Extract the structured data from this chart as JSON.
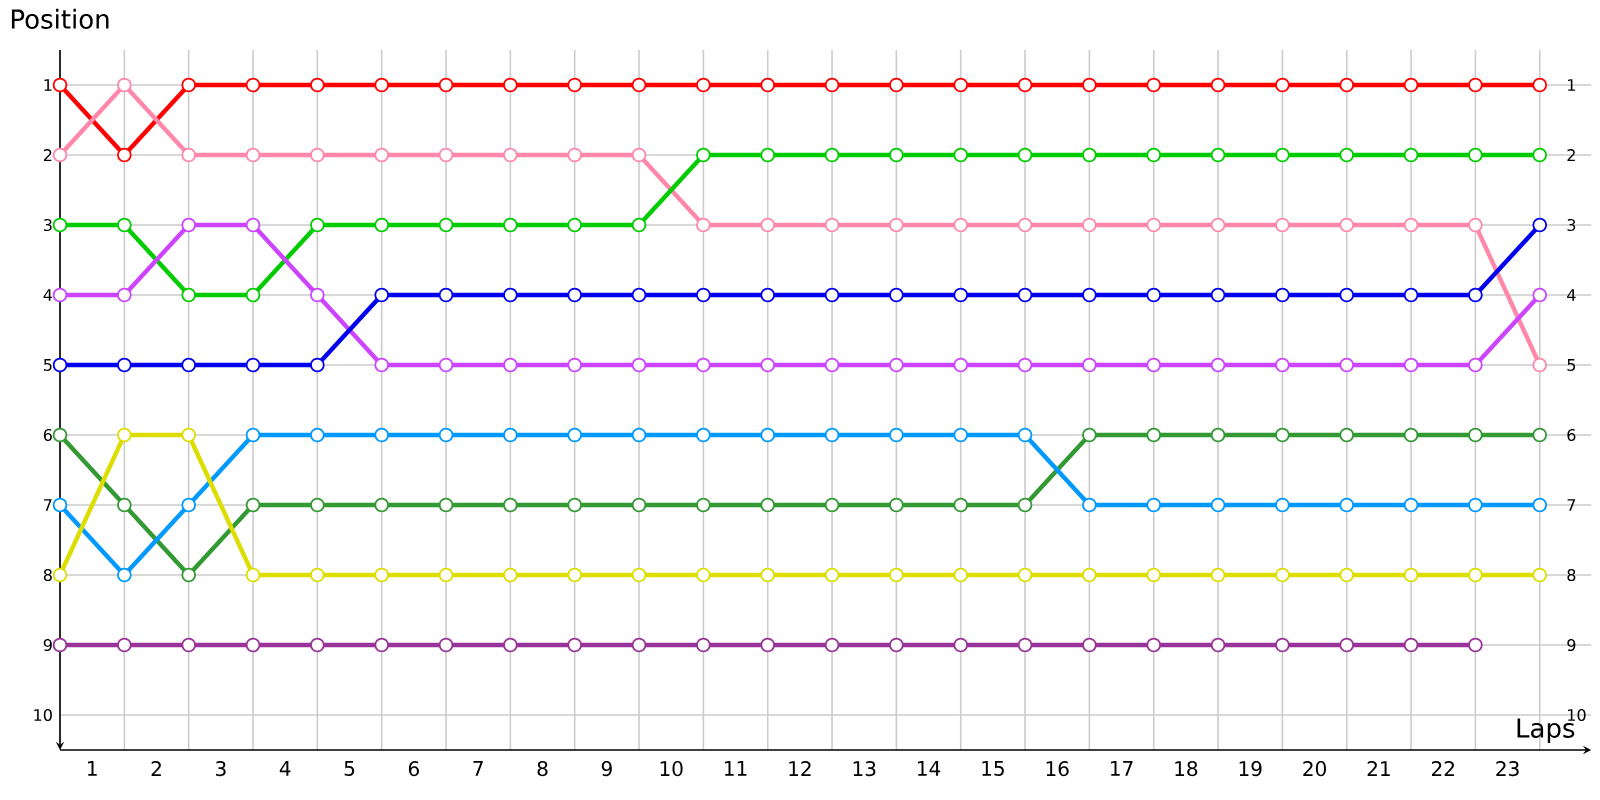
{
  "chart_data": {
    "type": "line",
    "xlabel": "Laps",
    "ylabel": "Position",
    "x": [
      0,
      1,
      2,
      3,
      4,
      5,
      6,
      7,
      8,
      9,
      10,
      11,
      12,
      13,
      14,
      15,
      16,
      17,
      18,
      19,
      20,
      21,
      22,
      23
    ],
    "series": [
      {
        "color": "#ff0000",
        "values": [
          1,
          2,
          1,
          1,
          1,
          1,
          1,
          1,
          1,
          1,
          1,
          1,
          1,
          1,
          1,
          1,
          1,
          1,
          1,
          1,
          1,
          1,
          1,
          1
        ]
      },
      {
        "color": "#ff88aa",
        "values": [
          2,
          1,
          2,
          2,
          2,
          2,
          2,
          2,
          2,
          2,
          3,
          3,
          3,
          3,
          3,
          3,
          3,
          3,
          3,
          3,
          3,
          3,
          3,
          5
        ]
      },
      {
        "color": "#00cc00",
        "values": [
          3,
          3,
          4,
          4,
          3,
          3,
          3,
          3,
          3,
          3,
          2,
          2,
          2,
          2,
          2,
          2,
          2,
          2,
          2,
          2,
          2,
          2,
          2,
          2
        ]
      },
      {
        "color": "#cc44ff",
        "values": [
          4,
          4,
          3,
          3,
          4,
          5,
          5,
          5,
          5,
          5,
          5,
          5,
          5,
          5,
          5,
          5,
          5,
          5,
          5,
          5,
          5,
          5,
          5,
          4
        ]
      },
      {
        "color": "#0000ee",
        "values": [
          5,
          5,
          5,
          5,
          5,
          4,
          4,
          4,
          4,
          4,
          4,
          4,
          4,
          4,
          4,
          4,
          4,
          4,
          4,
          4,
          4,
          4,
          4,
          3
        ]
      },
      {
        "color": "#339933",
        "values": [
          6,
          7,
          8,
          7,
          7,
          7,
          7,
          7,
          7,
          7,
          7,
          7,
          7,
          7,
          7,
          7,
          6,
          6,
          6,
          6,
          6,
          6,
          6,
          6
        ]
      },
      {
        "color": "#0099ff",
        "values": [
          7,
          8,
          7,
          6,
          6,
          6,
          6,
          6,
          6,
          6,
          6,
          6,
          6,
          6,
          6,
          6,
          7,
          7,
          7,
          7,
          7,
          7,
          7,
          7
        ]
      },
      {
        "color": "#dddd00",
        "values": [
          8,
          6,
          6,
          8,
          8,
          8,
          8,
          8,
          8,
          8,
          8,
          8,
          8,
          8,
          8,
          8,
          8,
          8,
          8,
          8,
          8,
          8,
          8,
          8
        ]
      },
      {
        "color": "#993399",
        "values": [
          9,
          9,
          9,
          9,
          9,
          9,
          9,
          9,
          9,
          9,
          9,
          9,
          9,
          9,
          9,
          9,
          9,
          9,
          9,
          9,
          9,
          9,
          9,
          null
        ]
      }
    ],
    "xlim": [
      0,
      23.8
    ],
    "ylim": [
      10.5,
      0.5
    ],
    "xticks": [
      {
        "value": 0,
        "label": null
      },
      {
        "value": 1,
        "label": null
      },
      {
        "value": 2,
        "label": null
      },
      {
        "value": 3,
        "label": null
      },
      {
        "value": 4,
        "label": null
      },
      {
        "value": 5,
        "label": null
      },
      {
        "value": 6,
        "label": null
      },
      {
        "value": 7,
        "label": null
      },
      {
        "value": 8,
        "label": null
      },
      {
        "value": 9,
        "label": null
      },
      {
        "value": 10,
        "label": null
      },
      {
        "value": 11,
        "label": null
      },
      {
        "value": 12,
        "label": null
      },
      {
        "value": 13,
        "label": null
      },
      {
        "value": 14,
        "label": null
      },
      {
        "value": 15,
        "label": null
      },
      {
        "value": 16,
        "label": null
      },
      {
        "value": 17,
        "label": null
      },
      {
        "value": 18,
        "label": null
      },
      {
        "value": 19,
        "label": null
      },
      {
        "value": 20,
        "label": null
      },
      {
        "value": 21,
        "label": null
      },
      {
        "value": 22,
        "label": null
      },
      {
        "value": 23,
        "label": null
      },
      {
        "value": 0.5,
        "label": "1"
      },
      {
        "value": 1.5,
        "label": "2"
      },
      {
        "value": 2.5,
        "label": "3"
      },
      {
        "value": 3.5,
        "label": "4"
      },
      {
        "value": 4.5,
        "label": "5"
      },
      {
        "value": 5.5,
        "label": "6"
      },
      {
        "value": 6.5,
        "label": "7"
      },
      {
        "value": 7.5,
        "label": "8"
      },
      {
        "value": 8.5,
        "label": "9"
      },
      {
        "value": 9.5,
        "label": "10"
      },
      {
        "value": 10.5,
        "label": "11"
      },
      {
        "value": 11.5,
        "label": "12"
      },
      {
        "value": 12.5,
        "label": "13"
      },
      {
        "value": 13.5,
        "label": "14"
      },
      {
        "value": 14.5,
        "label": "15"
      },
      {
        "value": 15.5,
        "label": "16"
      },
      {
        "value": 16.5,
        "label": "17"
      },
      {
        "value": 17.5,
        "label": "18"
      },
      {
        "value": 18.5,
        "label": "19"
      },
      {
        "value": 19.5,
        "label": "20"
      },
      {
        "value": 20.5,
        "label": "21"
      },
      {
        "value": 21.5,
        "label": "22"
      },
      {
        "value": 22.5,
        "label": "23"
      }
    ],
    "yticks": [
      1,
      2,
      3,
      4,
      5,
      6,
      7,
      8,
      9,
      10
    ],
    "y2lim": [
      10.5,
      0.5
    ],
    "y2ticks": [
      1,
      2,
      3,
      4,
      5,
      6,
      7,
      8,
      9,
      10
    ],
    "grid": true,
    "marker": "circle",
    "line_style": "solid"
  }
}
